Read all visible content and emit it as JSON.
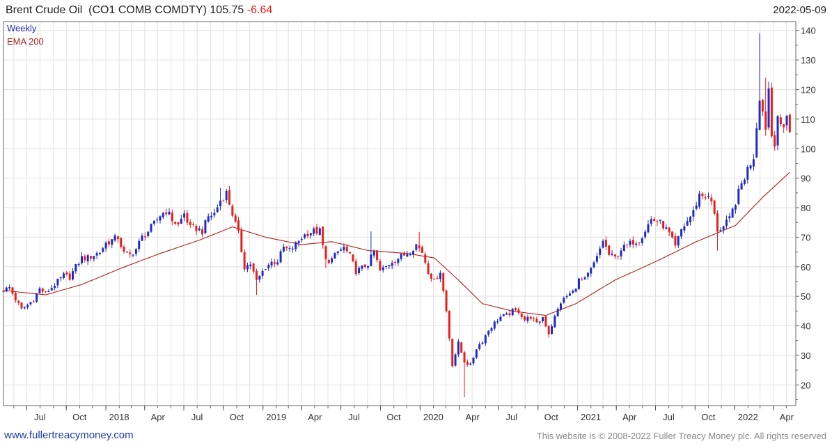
{
  "header": {
    "name": "Brent Crude Oil",
    "ticker": "(CO1 COMB COMDTY)",
    "last": "105.75",
    "change": "-6.64",
    "date": "2022-05-09"
  },
  "footer": {
    "website": "www.fullertreacymoney.com",
    "copyright": "This website is © 2008-2022 Fuller Treacy Money plc. All rights reserved"
  },
  "colors": {
    "up": "#1f2bc8",
    "down": "#e8201c",
    "ema": "#b01e1e",
    "grid": "#e2e2e2",
    "frame": "#666666"
  },
  "chart_data": {
    "type": "candlestick",
    "frequency_label": "Weekly",
    "indicator_label": "EMA 200",
    "ylim": [
      13,
      143
    ],
    "yticks": [
      20,
      30,
      40,
      50,
      60,
      70,
      80,
      90,
      100,
      110,
      120,
      130,
      140
    ],
    "x_tick_labels": [
      {
        "label": "Jul",
        "x": "2017-07"
      },
      {
        "label": "Oct",
        "x": "2017-10"
      },
      {
        "label": "2018",
        "x": "2018-01"
      },
      {
        "label": "Apr",
        "x": "2018-04"
      },
      {
        "label": "Jul",
        "x": "2018-07"
      },
      {
        "label": "Oct",
        "x": "2018-10"
      },
      {
        "label": "2019",
        "x": "2019-01"
      },
      {
        "label": "Apr",
        "x": "2019-04"
      },
      {
        "label": "Jul",
        "x": "2019-07"
      },
      {
        "label": "Oct",
        "x": "2019-10"
      },
      {
        "label": "2020",
        "x": "2020-01"
      },
      {
        "label": "Apr",
        "x": "2020-04"
      },
      {
        "label": "Jul",
        "x": "2020-07"
      },
      {
        "label": "Oct",
        "x": "2020-10"
      },
      {
        "label": "2021",
        "x": "2021-01"
      },
      {
        "label": "Apr",
        "x": "2021-04"
      },
      {
        "label": "Jul",
        "x": "2021-07"
      },
      {
        "label": "Oct",
        "x": "2021-10"
      },
      {
        "label": "2022",
        "x": "2022-01"
      },
      {
        "label": "Apr",
        "x": "2022-04"
      }
    ],
    "x_range": [
      "2017-05-08",
      "2022-05-23"
    ],
    "close_anchors": [
      [
        "2017-05-08",
        52
      ],
      [
        "2017-05-22",
        53
      ],
      [
        "2017-06-05",
        49
      ],
      [
        "2017-06-19",
        45.5
      ],
      [
        "2017-07-03",
        47
      ],
      [
        "2017-07-17",
        49
      ],
      [
        "2017-07-31",
        52.5
      ],
      [
        "2017-08-14",
        51
      ],
      [
        "2017-08-28",
        53
      ],
      [
        "2017-09-11",
        55
      ],
      [
        "2017-09-25",
        57
      ],
      [
        "2017-10-09",
        56.5
      ],
      [
        "2017-10-23",
        60
      ],
      [
        "2017-11-06",
        63
      ],
      [
        "2017-11-20",
        63
      ],
      [
        "2017-12-04",
        64
      ],
      [
        "2017-12-18",
        65
      ],
      [
        "2018-01-01",
        68
      ],
      [
        "2018-01-15",
        69
      ],
      [
        "2018-01-29",
        70
      ],
      [
        "2018-02-12",
        64.5
      ],
      [
        "2018-02-26",
        64
      ],
      [
        "2018-03-12",
        66
      ],
      [
        "2018-03-26",
        70
      ],
      [
        "2018-04-09",
        72
      ],
      [
        "2018-04-23",
        74.5
      ],
      [
        "2018-05-07",
        77.5
      ],
      [
        "2018-05-21",
        79
      ],
      [
        "2018-06-04",
        76
      ],
      [
        "2018-06-18",
        74
      ],
      [
        "2018-07-02",
        78
      ],
      [
        "2018-07-16",
        73
      ],
      [
        "2018-07-30",
        73
      ],
      [
        "2018-08-13",
        72
      ],
      [
        "2018-08-27",
        77
      ],
      [
        "2018-09-10",
        78
      ],
      [
        "2018-09-24",
        82.5
      ],
      [
        "2018-10-08",
        85
      ],
      [
        "2018-10-22",
        78
      ],
      [
        "2018-11-05",
        71
      ],
      [
        "2018-11-19",
        60
      ],
      [
        "2018-12-03",
        61
      ],
      [
        "2018-12-17",
        55
      ],
      [
        "2019-01-07",
        60
      ],
      [
        "2019-01-21",
        61.5
      ],
      [
        "2019-02-04",
        62
      ],
      [
        "2019-02-18",
        66.5
      ],
      [
        "2019-03-04",
        65.5
      ],
      [
        "2019-03-18",
        67.5
      ],
      [
        "2019-04-01",
        70
      ],
      [
        "2019-04-15",
        71.5
      ],
      [
        "2019-04-29",
        72
      ],
      [
        "2019-05-13",
        72
      ],
      [
        "2019-05-27",
        62
      ],
      [
        "2019-06-10",
        62.5
      ],
      [
        "2019-06-24",
        65
      ],
      [
        "2019-07-08",
        66.5
      ],
      [
        "2019-07-22",
        63.5
      ],
      [
        "2019-08-05",
        58.5
      ],
      [
        "2019-08-19",
        59.5
      ],
      [
        "2019-09-02",
        61
      ],
      [
        "2019-09-16",
        65
      ],
      [
        "2019-09-30",
        58.5
      ],
      [
        "2019-10-14",
        60
      ],
      [
        "2019-10-28",
        62
      ],
      [
        "2019-11-11",
        63
      ],
      [
        "2019-11-25",
        64
      ],
      [
        "2019-12-09",
        65.5
      ],
      [
        "2019-12-23",
        67.5
      ],
      [
        "2020-01-06",
        65
      ],
      [
        "2020-01-20",
        58.5
      ],
      [
        "2020-02-03",
        55
      ],
      [
        "2020-02-17",
        58.5
      ],
      [
        "2020-03-02",
        45
      ],
      [
        "2020-03-16",
        27
      ],
      [
        "2020-03-30",
        34
      ],
      [
        "2020-04-13",
        28
      ],
      [
        "2020-04-27",
        26.5
      ],
      [
        "2020-05-11",
        32.5
      ],
      [
        "2020-05-25",
        35
      ],
      [
        "2020-06-08",
        38.5
      ],
      [
        "2020-06-22",
        41
      ],
      [
        "2020-07-06",
        43
      ],
      [
        "2020-07-20",
        43.5
      ],
      [
        "2020-08-03",
        45
      ],
      [
        "2020-08-17",
        45
      ],
      [
        "2020-08-31",
        42
      ],
      [
        "2020-09-14",
        43
      ],
      [
        "2020-09-28",
        40.5
      ],
      [
        "2020-10-12",
        43
      ],
      [
        "2020-10-26",
        37.5
      ],
      [
        "2020-11-09",
        43
      ],
      [
        "2020-11-23",
        48
      ],
      [
        "2020-12-07",
        50
      ],
      [
        "2020-12-21",
        51.5
      ],
      [
        "2021-01-04",
        55.5
      ],
      [
        "2021-01-18",
        55.5
      ],
      [
        "2021-02-01",
        59
      ],
      [
        "2021-02-15",
        63
      ],
      [
        "2021-03-01",
        69
      ],
      [
        "2021-03-15",
        64
      ],
      [
        "2021-03-29",
        63
      ],
      [
        "2021-04-12",
        66
      ],
      [
        "2021-04-26",
        67
      ],
      [
        "2021-05-10",
        68.5
      ],
      [
        "2021-05-24",
        69
      ],
      [
        "2021-06-07",
        72.5
      ],
      [
        "2021-06-21",
        76
      ],
      [
        "2021-07-05",
        75.5
      ],
      [
        "2021-07-19",
        74
      ],
      [
        "2021-08-02",
        71
      ],
      [
        "2021-08-16",
        66.5
      ],
      [
        "2021-08-30",
        72.5
      ],
      [
        "2021-09-13",
        75.5
      ],
      [
        "2021-09-27",
        78.5
      ],
      [
        "2021-10-11",
        84.5
      ],
      [
        "2021-10-25",
        84
      ],
      [
        "2021-11-08",
        82
      ],
      [
        "2021-11-22",
        72.5
      ],
      [
        "2021-12-06",
        73.5
      ],
      [
        "2021-12-20",
        76
      ],
      [
        "2022-01-03",
        82
      ],
      [
        "2022-01-17",
        88
      ],
      [
        "2022-01-31",
        93
      ],
      [
        "2022-02-14",
        97.5
      ],
      [
        "2022-02-28",
        118
      ],
      [
        "2022-03-07",
        112.5
      ],
      [
        "2022-03-14",
        107.5
      ],
      [
        "2022-03-21",
        120.5
      ],
      [
        "2022-03-28",
        104.5
      ],
      [
        "2022-04-04",
        102.5
      ],
      [
        "2022-04-11",
        111.5
      ],
      [
        "2022-04-18",
        106.5
      ],
      [
        "2022-04-25",
        107
      ],
      [
        "2022-05-02",
        112.4
      ],
      [
        "2022-05-09",
        105.75
      ]
    ],
    "spikes": [
      [
        "2017-11-13",
        65
      ],
      [
        "2018-10-01",
        86.7
      ],
      [
        "2018-12-24",
        50.5
      ],
      [
        "2019-06-03",
        59.5
      ],
      [
        "2019-09-16",
        72
      ],
      [
        "2020-01-06",
        71.8
      ],
      [
        "2020-04-20",
        15.8
      ],
      [
        "2020-11-02",
        36
      ],
      [
        "2021-11-29",
        65.5
      ],
      [
        "2022-03-07",
        139.1
      ],
      [
        "2022-03-21",
        124
      ]
    ],
    "ema_anchors": [
      [
        "2017-05-08",
        52
      ],
      [
        "2017-08-14",
        50.5
      ],
      [
        "2017-11-06",
        54
      ],
      [
        "2018-02-05",
        59.5
      ],
      [
        "2018-05-07",
        64.5
      ],
      [
        "2018-08-06",
        69
      ],
      [
        "2018-10-22",
        73.5
      ],
      [
        "2019-01-07",
        70
      ],
      [
        "2019-04-01",
        67.5
      ],
      [
        "2019-06-10",
        68.5
      ],
      [
        "2019-09-02",
        65.5
      ],
      [
        "2019-12-02",
        64.5
      ],
      [
        "2020-02-03",
        63
      ],
      [
        "2020-03-30",
        55.5
      ],
      [
        "2020-05-25",
        47.5
      ],
      [
        "2020-08-03",
        45
      ],
      [
        "2020-10-19",
        43.5
      ],
      [
        "2020-12-28",
        47.5
      ],
      [
        "2021-03-29",
        55.5
      ],
      [
        "2021-07-05",
        62
      ],
      [
        "2021-10-04",
        68.5
      ],
      [
        "2022-01-03",
        74
      ],
      [
        "2022-03-07",
        83.5
      ],
      [
        "2022-05-09",
        92
      ]
    ]
  }
}
